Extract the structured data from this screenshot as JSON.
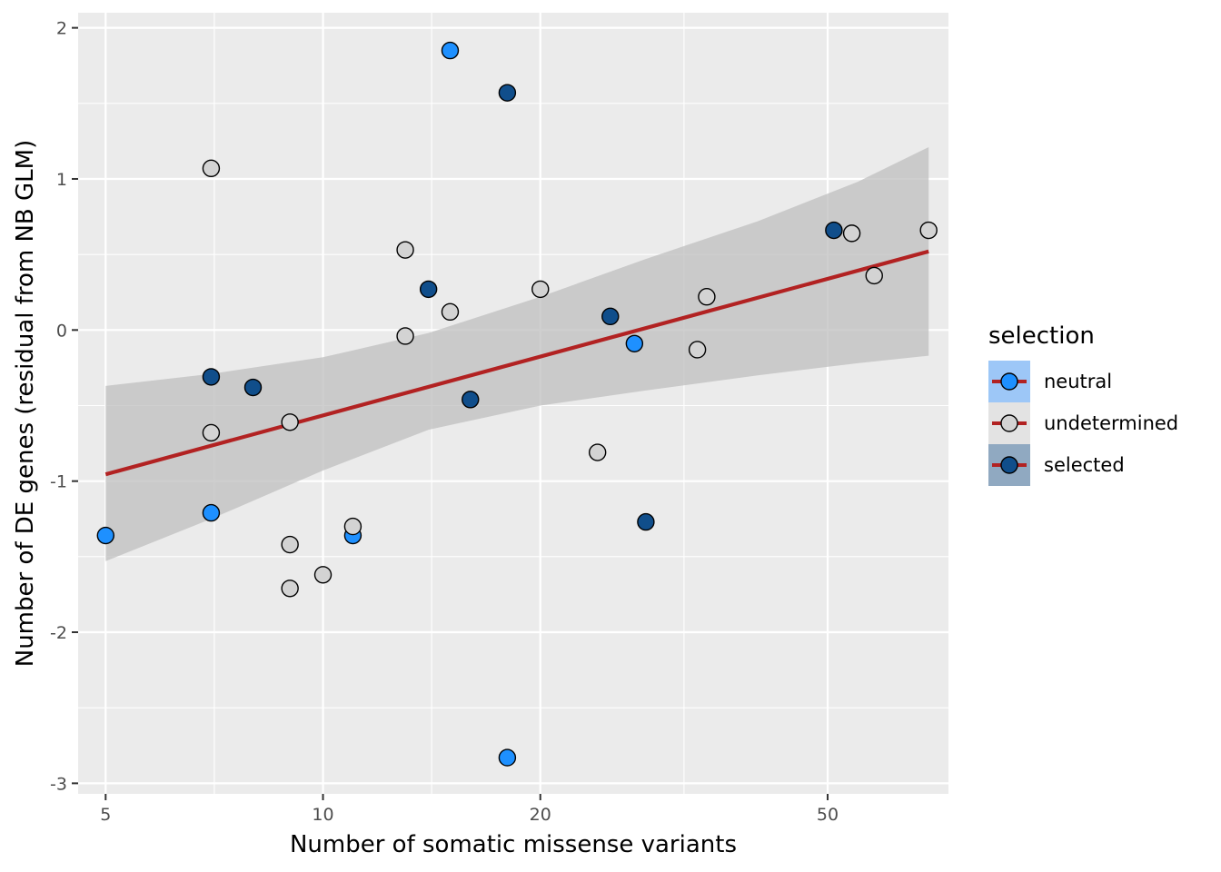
{
  "chart_data": {
    "type": "scatter",
    "title": "",
    "xlabel": "Number of somatic missense variants",
    "ylabel": "Number of DE genes (residual from NB GLM)",
    "x_scale": "log10",
    "xlim": [
      4.58,
      73.5
    ],
    "ylim": [
      -3.07,
      2.1
    ],
    "x_ticks": [
      5,
      10,
      20,
      50
    ],
    "x_tick_labels": [
      "5",
      "10",
      "20",
      "50"
    ],
    "y_ticks": [
      -3,
      -2,
      -1,
      0,
      1,
      2
    ],
    "y_tick_labels": [
      "-3",
      "-2",
      "-1",
      "0",
      "1",
      "2"
    ],
    "grid": true,
    "legend": {
      "title": "selection",
      "placement": "right",
      "entries": [
        {
          "key": "neutral",
          "label": "neutral",
          "color": "#1e90ff",
          "key_bg": "#9dc7f7"
        },
        {
          "key": "undetermined",
          "label": "undetermined",
          "color": "#d3d3d3",
          "key_bg": "#e3e3e3"
        },
        {
          "key": "selected",
          "label": "selected",
          "color": "#104e8b",
          "key_bg": "#90a9c1"
        }
      ]
    },
    "fit_line": {
      "color": "#b22222",
      "x": [
        5,
        69
      ],
      "y": [
        -0.955,
        0.52
      ]
    },
    "confidence_band": {
      "color": "#bdbdbd",
      "x": [
        5,
        7,
        10,
        14,
        20,
        28,
        40,
        55,
        69
      ],
      "upper": [
        -0.37,
        -0.29,
        -0.18,
        -0.02,
        0.22,
        0.47,
        0.72,
        0.98,
        1.21
      ],
      "lower": [
        -1.53,
        -1.25,
        -0.93,
        -0.66,
        -0.5,
        -0.4,
        -0.3,
        -0.22,
        -0.17
      ]
    },
    "series": [
      {
        "name": "neutral",
        "color": "#1e90ff",
        "points": [
          {
            "x": 15,
            "y": 1.85
          },
          {
            "x": 5,
            "y": -1.36
          },
          {
            "x": 7,
            "y": -1.21
          },
          {
            "x": 11,
            "y": -1.36
          },
          {
            "x": 18,
            "y": -2.83
          },
          {
            "x": 27,
            "y": -0.09
          }
        ]
      },
      {
        "name": "undetermined",
        "color": "#d3d3d3",
        "points": [
          {
            "x": 7,
            "y": 1.07
          },
          {
            "x": 7,
            "y": -0.68
          },
          {
            "x": 9,
            "y": -0.61
          },
          {
            "x": 9,
            "y": -1.42
          },
          {
            "x": 9,
            "y": -1.71
          },
          {
            "x": 10,
            "y": -1.62
          },
          {
            "x": 11,
            "y": -1.3
          },
          {
            "x": 13,
            "y": 0.53
          },
          {
            "x": 13,
            "y": -0.04
          },
          {
            "x": 15,
            "y": 0.12
          },
          {
            "x": 20,
            "y": 0.27
          },
          {
            "x": 24,
            "y": -0.81
          },
          {
            "x": 33,
            "y": -0.13
          },
          {
            "x": 34,
            "y": 0.22
          },
          {
            "x": 54,
            "y": 0.64
          },
          {
            "x": 58,
            "y": 0.36
          },
          {
            "x": 69,
            "y": 0.66
          }
        ]
      },
      {
        "name": "selected",
        "color": "#104e8b",
        "points": [
          {
            "x": 18,
            "y": 1.57
          },
          {
            "x": 7,
            "y": -0.31
          },
          {
            "x": 8,
            "y": -0.38
          },
          {
            "x": 14,
            "y": 0.27
          },
          {
            "x": 16,
            "y": -0.46
          },
          {
            "x": 25,
            "y": 0.09
          },
          {
            "x": 28,
            "y": -1.27
          },
          {
            "x": 51,
            "y": 0.66
          }
        ]
      }
    ]
  }
}
